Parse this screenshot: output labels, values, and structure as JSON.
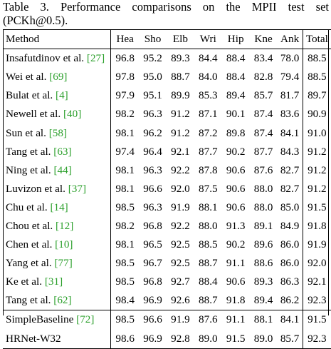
{
  "caption": {
    "line1": "Table 3. Performance comparisons on the MPII test set",
    "line2": "(PCKh@0.5)."
  },
  "headers": [
    "Method",
    "Hea",
    "Sho",
    "Elb",
    "Wri",
    "Hip",
    "Kne",
    "Ank",
    "Total"
  ],
  "rows": [
    {
      "name": "Insafutdinov et al. ",
      "ref": "[27]",
      "vals": [
        "96.8",
        "95.2",
        "89.3",
        "84.4",
        "88.4",
        "83.4",
        "78.0",
        "88.5"
      ],
      "bold": []
    },
    {
      "name": "Wei et al. ",
      "ref": "[69]",
      "vals": [
        "97.8",
        "95.0",
        "88.7",
        "84.0",
        "88.4",
        "82.8",
        "79.4",
        "88.5"
      ],
      "bold": []
    },
    {
      "name": "Bulat et al. ",
      "ref": "[4]",
      "vals": [
        "97.9",
        "95.1",
        "89.9",
        "85.3",
        "89.4",
        "85.7",
        "81.7",
        "89.7"
      ],
      "bold": []
    },
    {
      "name": "Newell et al. ",
      "ref": "[40]",
      "vals": [
        "98.2",
        "96.3",
        "91.2",
        "87.1",
        "90.1",
        "87.4",
        "83.6",
        "90.9"
      ],
      "bold": []
    },
    {
      "name": "Sun et al. ",
      "ref": "[58]",
      "vals": [
        "98.1",
        "96.2",
        "91.2",
        "87.2",
        "89.8",
        "87.4",
        "84.1",
        "91.0"
      ],
      "bold": []
    },
    {
      "name": "Tang et al. ",
      "ref": "[63]",
      "vals": [
        "97.4",
        "96.4",
        "92.1",
        "87.7",
        "90.2",
        "87.7",
        "84.3",
        "91.2"
      ],
      "bold": []
    },
    {
      "name": "Ning et al. ",
      "ref": "[44]",
      "vals": [
        "98.1",
        "96.3",
        "92.2",
        "87.8",
        "90.6",
        "87.6",
        "82.7",
        "91.2"
      ],
      "bold": []
    },
    {
      "name": "Luvizon et al. ",
      "ref": "[37]",
      "vals": [
        "98.1",
        "96.6",
        "92.0",
        "87.5",
        "90.6",
        "88.0",
        "82.7",
        "91.2"
      ],
      "bold": []
    },
    {
      "name": "Chu et al. ",
      "ref": "[14]",
      "vals": [
        "98.5",
        "96.3",
        "91.9",
        "88.1",
        "90.6",
        "88.0",
        "85.0",
        "91.5"
      ],
      "bold": []
    },
    {
      "name": "Chou et al. ",
      "ref": "[12]",
      "vals": [
        "98.2",
        "96.8",
        "92.2",
        "88.0",
        "91.3",
        "89.1",
        "84.9",
        "91.8"
      ],
      "bold": []
    },
    {
      "name": "Chen et al. ",
      "ref": "[10]",
      "vals": [
        "98.1",
        "96.5",
        "92.5",
        "88.5",
        "90.2",
        "89.6",
        "86.0",
        "91.9"
      ],
      "bold": [
        5
      ]
    },
    {
      "name": "Yang et al. ",
      "ref": "[77]",
      "vals": [
        "98.5",
        "96.7",
        "92.5",
        "88.7",
        "91.1",
        "88.6",
        "86.0",
        "92.0"
      ],
      "bold": []
    },
    {
      "name": "Ke et al. ",
      "ref": "[31]",
      "vals": [
        "98.5",
        "96.8",
        "92.7",
        "88.4",
        "90.6",
        "89.3",
        "86.3",
        "92.1"
      ],
      "bold": [
        6
      ]
    },
    {
      "name": "Tang et al. ",
      "ref": "[62]",
      "vals": [
        "98.4",
        "96.9",
        "92.6",
        "88.7",
        "91.8",
        "89.4",
        "86.2",
        "92.3"
      ],
      "bold": [
        1,
        4,
        7
      ]
    },
    {
      "name": "SimpleBaseline ",
      "ref": "[72]",
      "vals": [
        "98.5",
        "96.6",
        "91.9",
        "87.6",
        "91.1",
        "88.1",
        "84.1",
        "91.5"
      ],
      "bold": []
    },
    {
      "name": "HRNet-W32",
      "ref": "",
      "vals": [
        "98.6",
        "96.9",
        "92.8",
        "89.0",
        "91.5",
        "89.0",
        "85.7",
        "92.3"
      ],
      "bold": [
        0,
        1,
        2,
        3,
        7
      ]
    }
  ]
}
